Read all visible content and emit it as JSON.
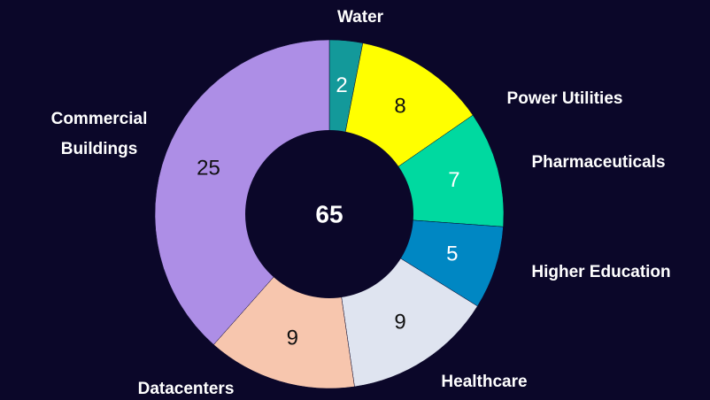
{
  "chart_data": {
    "type": "donut",
    "categories": [
      "Water",
      "Power Utilities",
      "Pharmaceuticals",
      "Higher Education",
      "Healthcare",
      "Datacenters",
      "Commercial Buildings"
    ],
    "values": [
      2,
      8,
      7,
      5,
      9,
      9,
      25
    ],
    "colors": [
      "#13999a",
      "#ffff00",
      "#00d9a0",
      "#0087c3",
      "#dfe4f0",
      "#f7c6ae",
      "#ad8ee6"
    ],
    "total": 65
  }
}
